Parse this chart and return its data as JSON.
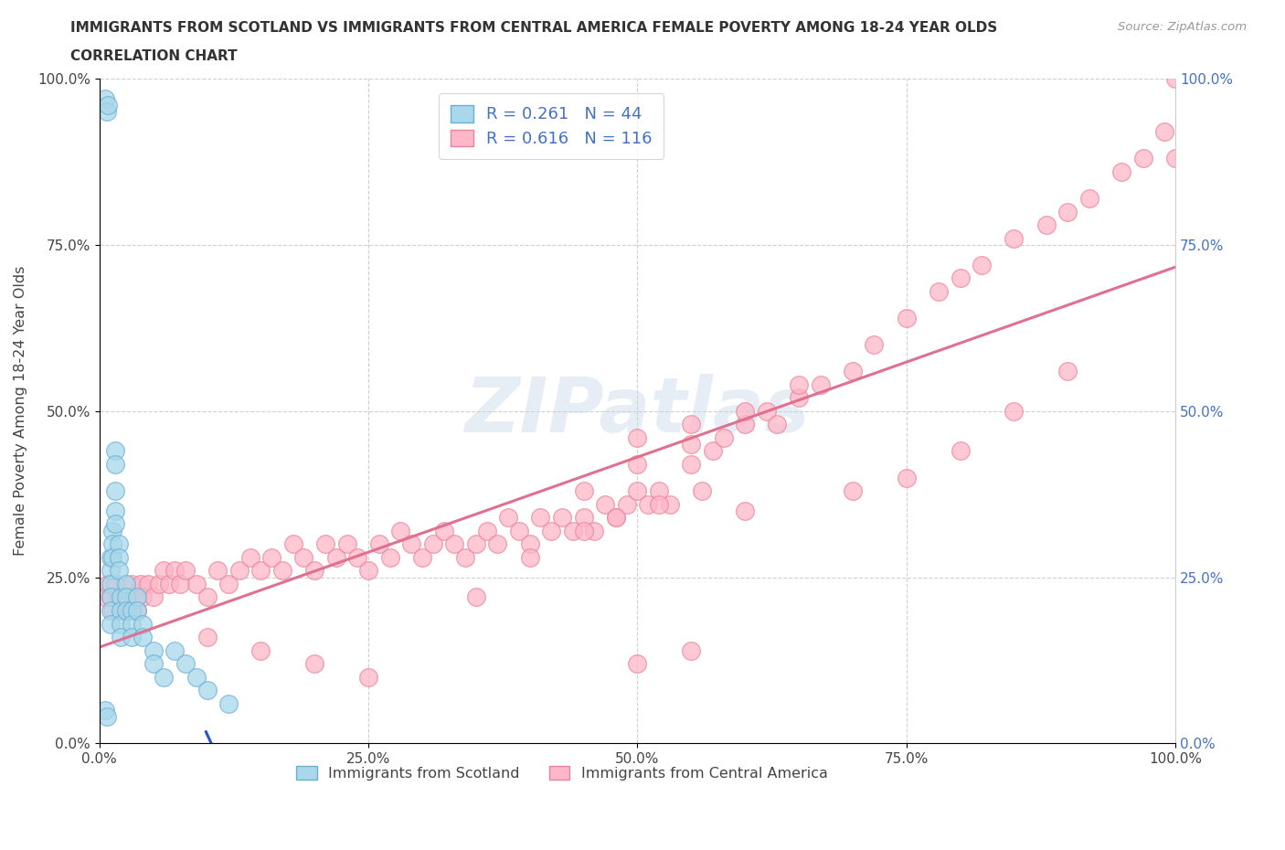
{
  "title_line1": "IMMIGRANTS FROM SCOTLAND VS IMMIGRANTS FROM CENTRAL AMERICA FEMALE POVERTY AMONG 18-24 YEAR OLDS",
  "title_line2": "CORRELATION CHART",
  "source": "Source: ZipAtlas.com",
  "ylabel": "Female Poverty Among 18-24 Year Olds",
  "xlim": [
    0.0,
    1.0
  ],
  "ylim": [
    0.0,
    1.0
  ],
  "xtick_labels": [
    "0.0%",
    "25.0%",
    "50.0%",
    "75.0%",
    "100.0%"
  ],
  "xtick_vals": [
    0.0,
    0.25,
    0.5,
    0.75,
    1.0
  ],
  "ytick_labels": [
    "0.0%",
    "25.0%",
    "50.0%",
    "75.0%",
    "100.0%"
  ],
  "ytick_vals": [
    0.0,
    0.25,
    0.5,
    0.75,
    1.0
  ],
  "right_ytick_labels": [
    "0.0%",
    "25.0%",
    "50.0%",
    "75.0%",
    "100.0%"
  ],
  "scotland_color": "#A8D8EA",
  "central_america_color": "#FFB6C8",
  "scotland_edge": "#6aafd4",
  "central_america_edge": "#e8849a",
  "scotland_R": 0.261,
  "scotland_N": 44,
  "central_america_R": 0.616,
  "central_america_N": 116,
  "scotland_line_color": "#2255CC",
  "central_america_line_color": "#E07090",
  "scotland_dash_color": "#90C4E4",
  "legend_label_scotland": "Immigrants from Scotland",
  "legend_label_central_america": "Immigrants from Central America",
  "watermark": "ZIPatlas",
  "scotland_x": [
    0.005,
    0.007,
    0.008,
    0.01,
    0.01,
    0.01,
    0.01,
    0.01,
    0.01,
    0.012,
    0.012,
    0.012,
    0.015,
    0.015,
    0.015,
    0.015,
    0.015,
    0.018,
    0.018,
    0.018,
    0.02,
    0.02,
    0.02,
    0.02,
    0.025,
    0.025,
    0.025,
    0.03,
    0.03,
    0.03,
    0.035,
    0.035,
    0.04,
    0.04,
    0.05,
    0.05,
    0.06,
    0.07,
    0.08,
    0.09,
    0.1,
    0.12,
    0.005,
    0.007
  ],
  "scotland_y": [
    0.97,
    0.95,
    0.96,
    0.28,
    0.26,
    0.24,
    0.22,
    0.2,
    0.18,
    0.32,
    0.3,
    0.28,
    0.44,
    0.42,
    0.38,
    0.35,
    0.33,
    0.3,
    0.28,
    0.26,
    0.22,
    0.2,
    0.18,
    0.16,
    0.24,
    0.22,
    0.2,
    0.2,
    0.18,
    0.16,
    0.22,
    0.2,
    0.18,
    0.16,
    0.14,
    0.12,
    0.1,
    0.14,
    0.12,
    0.1,
    0.08,
    0.06,
    0.05,
    0.04
  ],
  "central_america_x": [
    0.005,
    0.008,
    0.01,
    0.012,
    0.015,
    0.018,
    0.02,
    0.022,
    0.025,
    0.028,
    0.03,
    0.032,
    0.035,
    0.038,
    0.04,
    0.045,
    0.05,
    0.055,
    0.06,
    0.065,
    0.07,
    0.075,
    0.08,
    0.09,
    0.1,
    0.11,
    0.12,
    0.13,
    0.14,
    0.15,
    0.16,
    0.17,
    0.18,
    0.19,
    0.2,
    0.21,
    0.22,
    0.23,
    0.24,
    0.25,
    0.26,
    0.27,
    0.28,
    0.29,
    0.3,
    0.31,
    0.32,
    0.33,
    0.34,
    0.35,
    0.36,
    0.37,
    0.38,
    0.39,
    0.4,
    0.41,
    0.42,
    0.43,
    0.44,
    0.45,
    0.46,
    0.47,
    0.48,
    0.49,
    0.5,
    0.51,
    0.52,
    0.53,
    0.55,
    0.57,
    0.58,
    0.6,
    0.62,
    0.63,
    0.65,
    0.67,
    0.7,
    0.72,
    0.75,
    0.78,
    0.8,
    0.82,
    0.85,
    0.88,
    0.9,
    0.92,
    0.95,
    0.97,
    0.99,
    1.0,
    0.35,
    0.4,
    0.45,
    0.5,
    0.55,
    0.45,
    0.5,
    0.55,
    0.6,
    0.65,
    0.48,
    0.52,
    0.56,
    0.6,
    0.7,
    0.75,
    0.8,
    0.85,
    0.9,
    1.0,
    0.1,
    0.15,
    0.2,
    0.25,
    0.5,
    0.55
  ],
  "central_america_y": [
    0.22,
    0.24,
    0.22,
    0.2,
    0.24,
    0.22,
    0.2,
    0.22,
    0.2,
    0.22,
    0.24,
    0.22,
    0.2,
    0.24,
    0.22,
    0.24,
    0.22,
    0.24,
    0.26,
    0.24,
    0.26,
    0.24,
    0.26,
    0.24,
    0.22,
    0.26,
    0.24,
    0.26,
    0.28,
    0.26,
    0.28,
    0.26,
    0.3,
    0.28,
    0.26,
    0.3,
    0.28,
    0.3,
    0.28,
    0.26,
    0.3,
    0.28,
    0.32,
    0.3,
    0.28,
    0.3,
    0.32,
    0.3,
    0.28,
    0.3,
    0.32,
    0.3,
    0.34,
    0.32,
    0.3,
    0.34,
    0.32,
    0.34,
    0.32,
    0.34,
    0.32,
    0.36,
    0.34,
    0.36,
    0.38,
    0.36,
    0.38,
    0.36,
    0.42,
    0.44,
    0.46,
    0.48,
    0.5,
    0.48,
    0.52,
    0.54,
    0.56,
    0.6,
    0.64,
    0.68,
    0.7,
    0.72,
    0.76,
    0.78,
    0.8,
    0.82,
    0.86,
    0.88,
    0.92,
    1.0,
    0.22,
    0.28,
    0.32,
    0.46,
    0.48,
    0.38,
    0.42,
    0.45,
    0.5,
    0.54,
    0.34,
    0.36,
    0.38,
    0.35,
    0.38,
    0.4,
    0.44,
    0.5,
    0.56,
    0.88,
    0.16,
    0.14,
    0.12,
    0.1,
    0.12,
    0.14
  ]
}
